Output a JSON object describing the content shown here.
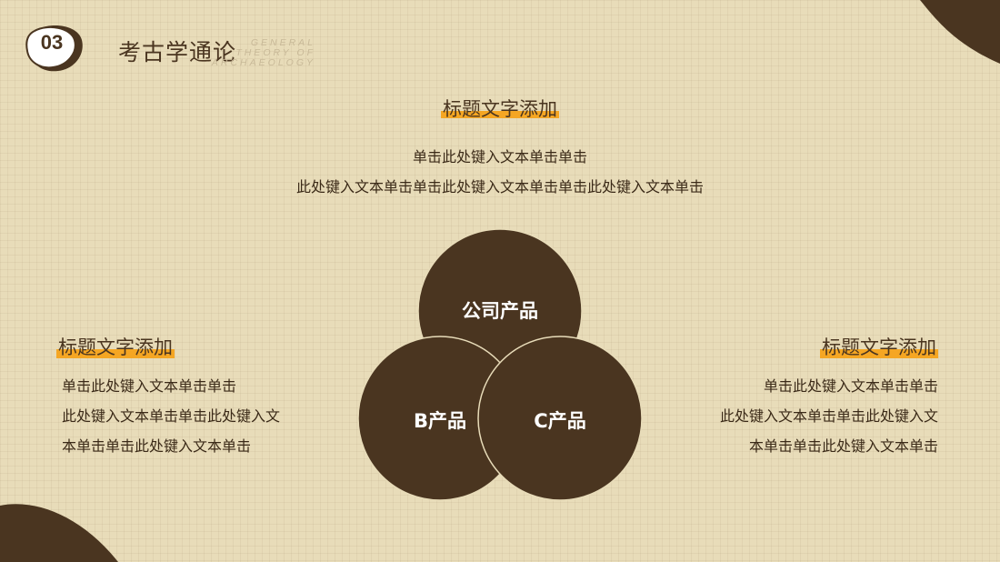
{
  "header": {
    "number": "03",
    "title": "考古学通论",
    "subtitle_en": [
      "GENERAL",
      "THEORY OF",
      "ARCHAEOLOGY"
    ]
  },
  "top_block": {
    "heading": "标题文字添加",
    "lines": [
      "单击此处键入文本单击单击",
      "此处键入文本单击单击此处键入文本单击单击此处键入文本单击"
    ]
  },
  "left_block": {
    "heading": "标题文字添加",
    "lines": [
      "单击此处键入文本单击单击",
      "此处键入文本单击单击此处键入文",
      "本单击单击此处键入文本单击"
    ]
  },
  "right_block": {
    "heading": "标题文字添加",
    "lines": [
      "单击此处键入文本单击单击",
      "此处键入文本单击单击此处键入文",
      "本单击单击此处键入文本单击"
    ]
  },
  "venn": {
    "top_label": "公司产品",
    "left_label": "B产品",
    "right_label": "C产品"
  },
  "colors": {
    "background": "#e8dcb9",
    "dark_brown": "#4a3520",
    "accent_orange": "#f5a623"
  }
}
